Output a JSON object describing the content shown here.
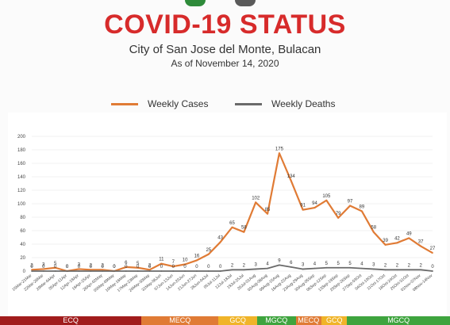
{
  "header": {
    "title": "COVID-19 STATUS",
    "subtitle": "City of San Jose del Monte, Bulacan",
    "as_of": "As of November 14, 2020"
  },
  "chart_data": {
    "type": "line",
    "ylim": [
      0,
      200
    ],
    "yticks": [
      0,
      20,
      40,
      60,
      80,
      100,
      120,
      140,
      160,
      180,
      200
    ],
    "grid": true,
    "legend": "top",
    "categories": [
      "15Mar-21Mar",
      "22Mar-28Mar",
      "29Mar-04Apr",
      "05Apr-11Apr",
      "12Apr-18Apr",
      "19Apr-25Apr",
      "26Apr-02May",
      "03May-09May",
      "10May-16May",
      "17May-23May",
      "24May-30May",
      "31May-06Jun",
      "07Jun-13Jun",
      "14Jun-20Jun",
      "21Jun-27Jun",
      "28Jun-04Jul",
      "05Jul-11Jul",
      "12Jul-18Jul",
      "19Jul-25Jul",
      "26Jul-01Aug",
      "02Aug-08Aug",
      "09Aug-15Aug",
      "16Aug-22Aug",
      "23Aug-29Aug",
      "30Aug-05Sep",
      "06Sep-12Sep",
      "13Sep-19Sep",
      "20Sep-26Sep",
      "27Sep-03Oct",
      "04Oct-10Oct",
      "11Oct-17Oct",
      "18Oct-24Oct",
      "25Oct-31Oct",
      "01Nov-07Nov",
      "08Nov-14Nov"
    ],
    "series": [
      {
        "name": "Weekly Cases",
        "color": "#e07b35",
        "values": [
          2,
          3,
          5,
          0,
          3,
          2,
          2,
          0,
          6,
          5,
          2,
          11,
          7,
          10,
          16,
          25,
          43,
          65,
          58,
          102,
          85,
          175,
          134,
          91,
          94,
          105,
          79,
          97,
          89,
          58,
          39,
          42,
          49,
          37,
          27
        ]
      },
      {
        "name": "Weekly Deaths",
        "color": "#6a6a6a",
        "values": [
          0,
          0,
          0,
          0,
          0,
          0,
          0,
          0,
          0,
          0,
          0,
          0,
          0,
          0,
          0,
          0,
          0,
          2,
          2,
          3,
          4,
          9,
          6,
          3,
          4,
          5,
          5,
          5,
          4,
          3,
          2,
          2,
          2,
          2,
          0
        ]
      }
    ]
  },
  "quarantine_bar": [
    {
      "label": "ECQ",
      "color": "#a11c1c",
      "from": 0,
      "to": 11
    },
    {
      "label": "MECQ",
      "color": "#e07b35",
      "from": 11,
      "to": 17
    },
    {
      "label": "GCQ",
      "color": "#f0b429",
      "from": 17,
      "to": 20
    },
    {
      "label": "MGCQ",
      "color": "#3ea43e",
      "from": 20,
      "to": 23
    },
    {
      "label": "MECQ",
      "color": "#e07b35",
      "from": 23,
      "to": 25
    },
    {
      "label": "GCQ",
      "color": "#f0b429",
      "from": 25,
      "to": 27
    },
    {
      "label": "MGCQ",
      "color": "#3ea43e",
      "from": 27,
      "to": 35
    }
  ]
}
